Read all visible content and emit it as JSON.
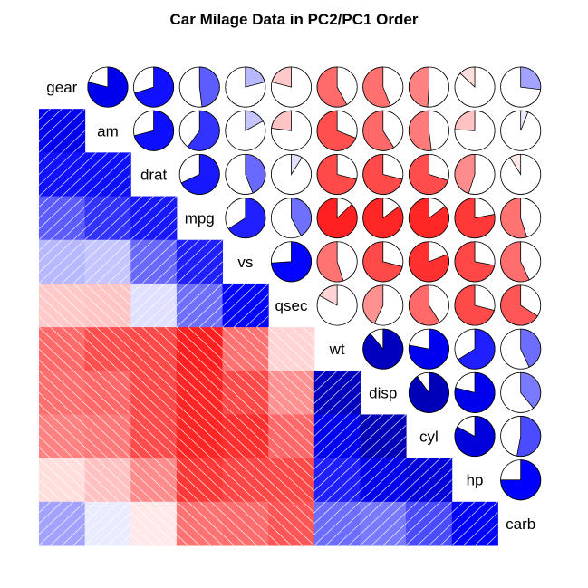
{
  "chart_data": {
    "type": "heatmap",
    "title": "Car Milage Data in PC2/PC1 Order",
    "variables": [
      "gear",
      "am",
      "drat",
      "mpg",
      "vs",
      "qsec",
      "wt",
      "disp",
      "cyl",
      "hp",
      "carb"
    ],
    "lower_panel": "shade",
    "upper_panel": "pie",
    "colors": {
      "positive": "#0000ff",
      "negative": "#ff0000",
      "neutral": "#ffffff",
      "dark_positive": "#00008b"
    },
    "correlation_matrix": [
      [
        1.0,
        0.79,
        0.7,
        0.48,
        0.21,
        -0.21,
        -0.58,
        -0.56,
        -0.49,
        -0.13,
        0.27
      ],
      [
        0.79,
        1.0,
        0.71,
        0.6,
        0.17,
        -0.23,
        -0.69,
        -0.59,
        -0.52,
        -0.24,
        0.06
      ],
      [
        0.7,
        0.71,
        1.0,
        0.68,
        0.44,
        0.09,
        -0.71,
        -0.71,
        -0.7,
        -0.45,
        -0.09
      ],
      [
        0.48,
        0.6,
        0.68,
        1.0,
        0.66,
        0.42,
        -0.87,
        -0.85,
        -0.85,
        -0.78,
        -0.55
      ],
      [
        0.21,
        0.17,
        0.44,
        0.66,
        1.0,
        0.74,
        -0.55,
        -0.71,
        -0.81,
        -0.72,
        -0.57
      ],
      [
        -0.21,
        -0.23,
        0.09,
        0.42,
        0.74,
        1.0,
        -0.17,
        -0.43,
        -0.59,
        -0.71,
        -0.66
      ],
      [
        -0.58,
        -0.69,
        -0.71,
        -0.87,
        -0.55,
        -0.17,
        1.0,
        0.89,
        0.78,
        0.66,
        0.43
      ],
      [
        -0.56,
        -0.59,
        -0.71,
        -0.85,
        -0.71,
        -0.43,
        0.89,
        1.0,
        0.9,
        0.79,
        0.39
      ],
      [
        -0.49,
        -0.52,
        -0.7,
        -0.85,
        -0.81,
        -0.59,
        0.78,
        0.9,
        1.0,
        0.83,
        0.53
      ],
      [
        -0.13,
        -0.24,
        -0.45,
        -0.78,
        -0.72,
        -0.71,
        0.66,
        0.79,
        0.83,
        1.0,
        0.75
      ],
      [
        0.27,
        0.06,
        -0.09,
        -0.55,
        -0.57,
        -0.66,
        0.43,
        0.39,
        0.53,
        0.75,
        1.0
      ]
    ]
  }
}
